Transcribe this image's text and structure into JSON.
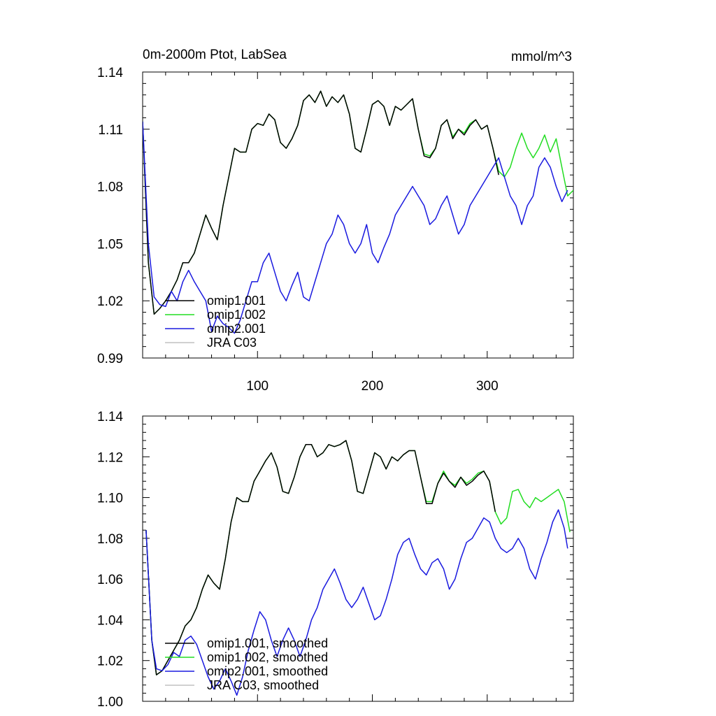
{
  "chart_data": [
    {
      "type": "line",
      "title": "0m-2000m Ptot, LabSea",
      "units": "mmol/m^3",
      "xlim": [
        0,
        375
      ],
      "ylim": [
        0.99,
        1.14
      ],
      "yticks": [
        0.99,
        1.02,
        1.05,
        1.08,
        1.11,
        1.14
      ],
      "ytick_labels": [
        "0.99",
        "1.02",
        "1.05",
        "1.08",
        "1.11",
        "1.14"
      ],
      "xticks": [
        100,
        200,
        300
      ],
      "xtick_labels": [
        "100",
        "200",
        "300"
      ],
      "legend_placement": "lower-left",
      "legend": [
        "omip1.001",
        "omip1.002",
        "omip2.001",
        "JRA C03"
      ],
      "series": [
        {
          "name": "omip1.001",
          "color": "#000000",
          "x": [
            0,
            5,
            10,
            15,
            20,
            25,
            30,
            35,
            40,
            45,
            50,
            55,
            60,
            65,
            70,
            75,
            80,
            85,
            90,
            95,
            100,
            105,
            110,
            115,
            120,
            125,
            130,
            135,
            140,
            145,
            150,
            155,
            160,
            165,
            170,
            175,
            180,
            185,
            190,
            195,
            200,
            205,
            210,
            215,
            220,
            225,
            230,
            235,
            240,
            245,
            250,
            255,
            260,
            265,
            270,
            275,
            280,
            285,
            290,
            295,
            300,
            305,
            310
          ],
          "y": [
            1.114,
            1.04,
            1.013,
            1.016,
            1.02,
            1.025,
            1.031,
            1.04,
            1.04,
            1.045,
            1.055,
            1.065,
            1.058,
            1.052,
            1.07,
            1.085,
            1.1,
            1.098,
            1.098,
            1.11,
            1.113,
            1.112,
            1.118,
            1.115,
            1.103,
            1.1,
            1.105,
            1.112,
            1.125,
            1.128,
            1.124,
            1.13,
            1.122,
            1.127,
            1.124,
            1.128,
            1.118,
            1.1,
            1.098,
            1.11,
            1.123,
            1.125,
            1.122,
            1.112,
            1.122,
            1.12,
            1.123,
            1.126,
            1.11,
            1.096,
            1.095,
            1.1,
            1.112,
            1.115,
            1.105,
            1.11,
            1.107,
            1.112,
            1.115,
            1.11,
            1.112,
            1.1,
            1.086
          ]
        },
        {
          "name": "omip1.002",
          "color": "#22dd22",
          "x": [
            0,
            5,
            10,
            15,
            20,
            25,
            30,
            35,
            40,
            45,
            50,
            55,
            60,
            65,
            70,
            75,
            80,
            85,
            90,
            95,
            100,
            105,
            110,
            115,
            120,
            125,
            130,
            135,
            140,
            145,
            150,
            155,
            160,
            165,
            170,
            175,
            180,
            185,
            190,
            195,
            200,
            205,
            210,
            215,
            220,
            225,
            230,
            235,
            240,
            245,
            250,
            255,
            260,
            265,
            270,
            275,
            280,
            285,
            290,
            295,
            300,
            305,
            310,
            315,
            320,
            325,
            330,
            335,
            340,
            345,
            350,
            355,
            360,
            365,
            370,
            375
          ],
          "y": [
            1.114,
            1.04,
            1.013,
            1.016,
            1.02,
            1.025,
            1.031,
            1.04,
            1.04,
            1.045,
            1.055,
            1.065,
            1.058,
            1.052,
            1.07,
            1.085,
            1.1,
            1.098,
            1.098,
            1.11,
            1.113,
            1.112,
            1.118,
            1.115,
            1.103,
            1.1,
            1.105,
            1.112,
            1.125,
            1.128,
            1.124,
            1.13,
            1.122,
            1.127,
            1.124,
            1.128,
            1.118,
            1.1,
            1.098,
            1.11,
            1.123,
            1.125,
            1.122,
            1.112,
            1.122,
            1.12,
            1.123,
            1.126,
            1.11,
            1.097,
            1.096,
            1.1,
            1.112,
            1.115,
            1.106,
            1.11,
            1.108,
            1.113,
            1.115,
            1.11,
            1.112,
            1.1,
            1.088,
            1.085,
            1.09,
            1.1,
            1.108,
            1.1,
            1.095,
            1.1,
            1.107,
            1.098,
            1.105,
            1.09,
            1.075,
            1.078
          ]
        },
        {
          "name": "omip2.001",
          "color": "#1a1adf",
          "x": [
            0,
            5,
            10,
            15,
            20,
            25,
            30,
            35,
            40,
            45,
            50,
            55,
            60,
            65,
            70,
            75,
            80,
            85,
            90,
            95,
            100,
            105,
            110,
            115,
            120,
            125,
            130,
            135,
            140,
            145,
            150,
            155,
            160,
            165,
            170,
            175,
            180,
            185,
            190,
            195,
            200,
            205,
            210,
            215,
            220,
            225,
            230,
            235,
            240,
            245,
            250,
            255,
            260,
            265,
            270,
            275,
            280,
            285,
            290,
            295,
            300,
            305,
            310,
            315,
            320,
            325,
            330,
            335,
            340,
            345,
            350,
            355,
            360,
            365,
            370
          ],
          "y": [
            1.114,
            1.05,
            1.022,
            1.018,
            1.017,
            1.025,
            1.02,
            1.03,
            1.036,
            1.03,
            1.025,
            1.02,
            1.004,
            1.012,
            1.008,
            1.006,
            1.003,
            1.01,
            1.02,
            1.03,
            1.03,
            1.04,
            1.045,
            1.035,
            1.025,
            1.02,
            1.028,
            1.035,
            1.022,
            1.02,
            1.03,
            1.04,
            1.05,
            1.055,
            1.065,
            1.06,
            1.05,
            1.045,
            1.05,
            1.06,
            1.045,
            1.04,
            1.048,
            1.055,
            1.065,
            1.07,
            1.075,
            1.08,
            1.075,
            1.07,
            1.06,
            1.063,
            1.07,
            1.075,
            1.065,
            1.055,
            1.06,
            1.07,
            1.075,
            1.08,
            1.085,
            1.09,
            1.095,
            1.085,
            1.075,
            1.07,
            1.06,
            1.07,
            1.075,
            1.09,
            1.095,
            1.09,
            1.08,
            1.072,
            1.078
          ]
        },
        {
          "name": "JRA C03",
          "color": "#c0c0c0",
          "x": [],
          "y": []
        }
      ]
    },
    {
      "type": "line",
      "title": "",
      "xlim": [
        0,
        375
      ],
      "ylim": [
        1.0,
        1.14
      ],
      "yticks": [
        1.0,
        1.02,
        1.04,
        1.06,
        1.08,
        1.1,
        1.12,
        1.14
      ],
      "ytick_labels": [
        "1.00",
        "1.02",
        "1.04",
        "1.06",
        "1.08",
        "1.10",
        "1.12",
        "1.14"
      ],
      "xticks": [
        100,
        200,
        300
      ],
      "xtick_labels": [],
      "legend_placement": "lower-left",
      "legend": [
        "omip1.001, smoothed",
        "omip1.002, smoothed",
        "omip2.001, smoothed",
        "JRA C03, smoothed"
      ],
      "series": [
        {
          "name": "omip1.001, smoothed",
          "color": "#000000",
          "x": [
            3,
            8,
            12,
            17,
            22,
            27,
            32,
            37,
            42,
            47,
            52,
            57,
            62,
            67,
            72,
            77,
            82,
            87,
            92,
            97,
            102,
            107,
            112,
            117,
            122,
            127,
            132,
            137,
            142,
            147,
            152,
            157,
            162,
            167,
            172,
            177,
            182,
            187,
            192,
            197,
            202,
            207,
            212,
            217,
            222,
            227,
            232,
            237,
            242,
            247,
            252,
            257,
            262,
            267,
            272,
            277,
            282,
            287,
            292,
            297,
            302,
            307
          ],
          "y": [
            1.084,
            1.03,
            1.013,
            1.015,
            1.02,
            1.025,
            1.03,
            1.037,
            1.04,
            1.046,
            1.055,
            1.062,
            1.058,
            1.055,
            1.07,
            1.088,
            1.1,
            1.098,
            1.098,
            1.108,
            1.113,
            1.118,
            1.122,
            1.115,
            1.103,
            1.102,
            1.11,
            1.12,
            1.126,
            1.126,
            1.12,
            1.122,
            1.126,
            1.125,
            1.126,
            1.128,
            1.118,
            1.103,
            1.102,
            1.112,
            1.122,
            1.12,
            1.114,
            1.12,
            1.118,
            1.121,
            1.123,
            1.123,
            1.11,
            1.097,
            1.097,
            1.107,
            1.112,
            1.108,
            1.105,
            1.11,
            1.106,
            1.108,
            1.111,
            1.113,
            1.108,
            1.093
          ]
        },
        {
          "name": "omip1.002, smoothed",
          "color": "#22dd22",
          "x": [
            3,
            8,
            12,
            17,
            22,
            27,
            32,
            37,
            42,
            47,
            52,
            57,
            62,
            67,
            72,
            77,
            82,
            87,
            92,
            97,
            102,
            107,
            112,
            117,
            122,
            127,
            132,
            137,
            142,
            147,
            152,
            157,
            162,
            167,
            172,
            177,
            182,
            187,
            192,
            197,
            202,
            207,
            212,
            217,
            222,
            227,
            232,
            237,
            242,
            247,
            252,
            257,
            262,
            267,
            272,
            277,
            282,
            287,
            292,
            297,
            302,
            307,
            312,
            317,
            322,
            327,
            332,
            337,
            342,
            347,
            352,
            357,
            362,
            367,
            372
          ],
          "y": [
            1.084,
            1.03,
            1.013,
            1.015,
            1.02,
            1.025,
            1.03,
            1.037,
            1.04,
            1.046,
            1.055,
            1.062,
            1.058,
            1.055,
            1.07,
            1.088,
            1.1,
            1.098,
            1.098,
            1.108,
            1.113,
            1.118,
            1.122,
            1.115,
            1.103,
            1.102,
            1.11,
            1.12,
            1.126,
            1.126,
            1.12,
            1.122,
            1.126,
            1.125,
            1.126,
            1.128,
            1.118,
            1.103,
            1.102,
            1.112,
            1.122,
            1.12,
            1.114,
            1.12,
            1.118,
            1.121,
            1.123,
            1.123,
            1.11,
            1.098,
            1.098,
            1.107,
            1.113,
            1.108,
            1.106,
            1.11,
            1.107,
            1.109,
            1.112,
            1.113,
            1.108,
            1.093,
            1.087,
            1.09,
            1.103,
            1.104,
            1.098,
            1.095,
            1.1,
            1.098,
            1.1,
            1.102,
            1.104,
            1.098,
            1.083
          ]
        },
        {
          "name": "omip2.001, smoothed",
          "color": "#1a1adf",
          "x": [
            3,
            8,
            12,
            17,
            22,
            27,
            32,
            37,
            42,
            47,
            52,
            57,
            62,
            67,
            72,
            77,
            82,
            87,
            92,
            97,
            102,
            107,
            112,
            117,
            122,
            127,
            132,
            137,
            142,
            147,
            152,
            157,
            162,
            167,
            172,
            177,
            182,
            187,
            192,
            197,
            202,
            207,
            212,
            217,
            222,
            227,
            232,
            237,
            242,
            247,
            252,
            257,
            262,
            267,
            272,
            277,
            282,
            287,
            292,
            297,
            302,
            307,
            312,
            317,
            322,
            327,
            332,
            337,
            342,
            347,
            352,
            357,
            362,
            367,
            370
          ],
          "y": [
            1.084,
            1.03,
            1.016,
            1.015,
            1.018,
            1.024,
            1.022,
            1.03,
            1.032,
            1.028,
            1.02,
            1.012,
            1.006,
            1.01,
            1.016,
            1.01,
            1.003,
            1.012,
            1.025,
            1.035,
            1.044,
            1.04,
            1.03,
            1.022,
            1.03,
            1.036,
            1.03,
            1.022,
            1.03,
            1.04,
            1.046,
            1.055,
            1.06,
            1.065,
            1.058,
            1.05,
            1.046,
            1.05,
            1.056,
            1.048,
            1.04,
            1.042,
            1.05,
            1.06,
            1.072,
            1.078,
            1.08,
            1.072,
            1.065,
            1.062,
            1.068,
            1.07,
            1.065,
            1.055,
            1.06,
            1.07,
            1.078,
            1.08,
            1.085,
            1.09,
            1.088,
            1.08,
            1.075,
            1.073,
            1.075,
            1.08,
            1.075,
            1.065,
            1.06,
            1.07,
            1.078,
            1.088,
            1.094,
            1.085,
            1.075
          ]
        },
        {
          "name": "JRA C03, smoothed",
          "color": "#c0c0c0",
          "x": [],
          "y": []
        }
      ]
    }
  ]
}
